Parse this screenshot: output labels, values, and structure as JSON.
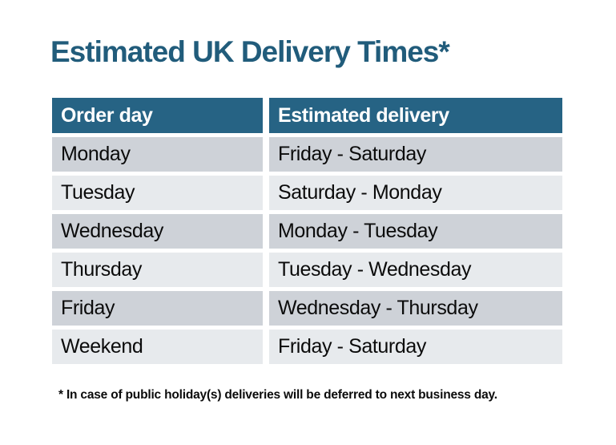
{
  "title": "Estimated UK Delivery Times*",
  "table": {
    "headers": [
      "Order day",
      "Estimated delivery"
    ],
    "rows": [
      {
        "order_day": "Monday",
        "estimated_delivery": "Friday - Saturday"
      },
      {
        "order_day": "Tuesday",
        "estimated_delivery": "Saturday - Monday"
      },
      {
        "order_day": "Wednesday",
        "estimated_delivery": "Monday - Tuesday"
      },
      {
        "order_day": "Thursday",
        "estimated_delivery": "Tuesday - Wednesday"
      },
      {
        "order_day": "Friday",
        "estimated_delivery": "Wednesday - Thursday"
      },
      {
        "order_day": "Weekend",
        "estimated_delivery": "Friday - Saturday"
      }
    ]
  },
  "footnote": "* In case of public holiday(s) deliveries will be deferred to next business day.",
  "colors": {
    "background": "#FFFFFF",
    "title_text": "#215C7B",
    "header_bg": "#266384",
    "header_text": "#FFFFFF",
    "row_dark": "#CED2D8",
    "row_light": "#E7EAED",
    "body_text": "#0B0B0B"
  }
}
